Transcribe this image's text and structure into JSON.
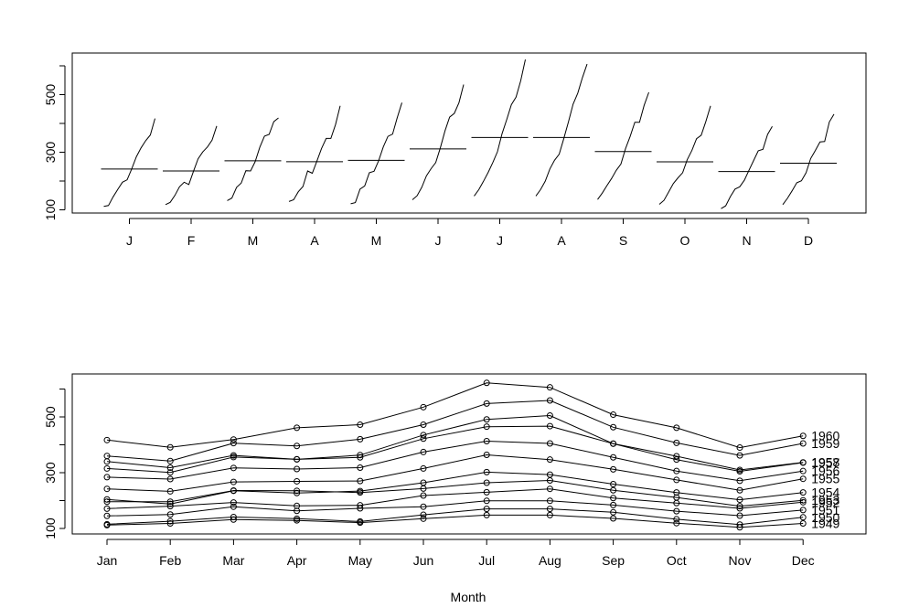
{
  "chart_data": [
    {
      "type": "line",
      "subtype": "monthplot",
      "title": "",
      "xlabel": "",
      "ylabel": "",
      "ylim": [
        100,
        600
      ],
      "yticks": [
        100,
        300,
        500
      ],
      "month_labels": [
        "J",
        "F",
        "M",
        "A",
        "M",
        "J",
        "J",
        "A",
        "S",
        "O",
        "N",
        "D"
      ],
      "month_means": [
        241.75,
        235.0,
        270.17,
        267.08,
        271.83,
        311.67,
        351.33,
        351.08,
        302.42,
        266.58,
        232.83,
        261.83
      ]
    },
    {
      "type": "line",
      "subtype": "seasonplot",
      "title": "",
      "xlabel": "Month",
      "ylabel": "",
      "ylim": [
        100,
        600
      ],
      "yticks": [
        100,
        300,
        500
      ],
      "categories": [
        "Jan",
        "Feb",
        "Mar",
        "Apr",
        "May",
        "Jun",
        "Jul",
        "Aug",
        "Sep",
        "Oct",
        "Nov",
        "Dec"
      ],
      "series": [
        {
          "name": "1949",
          "values": [
            112,
            118,
            132,
            129,
            121,
            135,
            148,
            148,
            136,
            119,
            104,
            118
          ]
        },
        {
          "name": "1950",
          "values": [
            115,
            126,
            141,
            135,
            125,
            149,
            170,
            170,
            158,
            133,
            114,
            140
          ]
        },
        {
          "name": "1951",
          "values": [
            145,
            150,
            178,
            163,
            172,
            178,
            199,
            199,
            184,
            162,
            146,
            166
          ]
        },
        {
          "name": "1952",
          "values": [
            171,
            180,
            193,
            181,
            183,
            218,
            230,
            242,
            209,
            191,
            172,
            194
          ]
        },
        {
          "name": "1953",
          "values": [
            196,
            196,
            236,
            235,
            229,
            243,
            264,
            272,
            237,
            211,
            180,
            201
          ]
        },
        {
          "name": "1954",
          "values": [
            204,
            188,
            235,
            227,
            234,
            264,
            302,
            293,
            259,
            229,
            203,
            229
          ]
        },
        {
          "name": "1955",
          "values": [
            242,
            233,
            267,
            269,
            270,
            315,
            364,
            347,
            312,
            274,
            237,
            278
          ]
        },
        {
          "name": "1956",
          "values": [
            284,
            277,
            317,
            313,
            318,
            374,
            413,
            405,
            355,
            306,
            271,
            306
          ]
        },
        {
          "name": "1957",
          "values": [
            315,
            301,
            356,
            348,
            355,
            422,
            465,
            467,
            404,
            347,
            305,
            336
          ]
        },
        {
          "name": "1958",
          "values": [
            340,
            318,
            362,
            348,
            363,
            435,
            491,
            505,
            404,
            359,
            310,
            337
          ]
        },
        {
          "name": "1959",
          "values": [
            360,
            342,
            406,
            396,
            420,
            472,
            548,
            559,
            463,
            407,
            362,
            405
          ]
        },
        {
          "name": "1960",
          "values": [
            417,
            391,
            419,
            461,
            472,
            535,
            622,
            606,
            508,
            461,
            390,
            432
          ]
        }
      ]
    }
  ]
}
